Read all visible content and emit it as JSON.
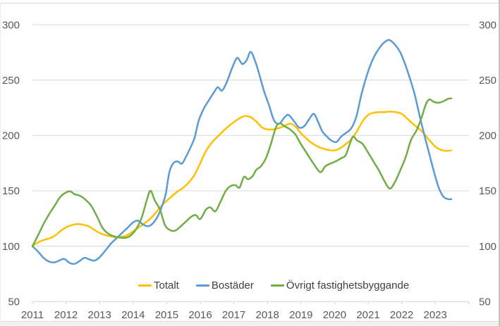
{
  "chart_data": {
    "type": "line",
    "title": "",
    "xlabel": "",
    "ylabel": "",
    "xlim": [
      2011,
      2024
    ],
    "ylim": [
      50,
      300
    ],
    "grid": "horizontal",
    "legend_position": "bottom-center",
    "y_ticks": [
      50,
      100,
      150,
      200,
      250,
      300
    ],
    "x_tick_labels": [
      "2011",
      "2012",
      "2013",
      "2014",
      "2015",
      "2016",
      "2017",
      "2018",
      "2019",
      "2020",
      "2021",
      "2022",
      "2023"
    ],
    "axis_label_color": "#595959",
    "gridline_color": "#d9d9d9",
    "series": [
      {
        "name": "Totalt",
        "color": "#FFC000",
        "points": [
          [
            2011.0,
            100
          ],
          [
            2011.17,
            103.5
          ],
          [
            2011.33,
            105.5
          ],
          [
            2011.5,
            107
          ],
          [
            2011.67,
            109.5
          ],
          [
            2011.83,
            113.5
          ],
          [
            2012.0,
            117
          ],
          [
            2012.17,
            119
          ],
          [
            2012.33,
            120
          ],
          [
            2012.5,
            119.5
          ],
          [
            2012.67,
            118
          ],
          [
            2012.83,
            115
          ],
          [
            2013.0,
            112
          ],
          [
            2013.17,
            110
          ],
          [
            2013.33,
            109
          ],
          [
            2013.5,
            108
          ],
          [
            2013.67,
            108.5
          ],
          [
            2013.83,
            110
          ],
          [
            2014.0,
            113.5
          ],
          [
            2014.17,
            117
          ],
          [
            2014.33,
            120.5
          ],
          [
            2014.5,
            124.5
          ],
          [
            2014.67,
            130
          ],
          [
            2014.83,
            136
          ],
          [
            2015.0,
            141
          ],
          [
            2015.17,
            145.5
          ],
          [
            2015.33,
            149.5
          ],
          [
            2015.5,
            153
          ],
          [
            2015.67,
            158
          ],
          [
            2015.83,
            164.5
          ],
          [
            2016.0,
            175
          ],
          [
            2016.17,
            186
          ],
          [
            2016.33,
            193
          ],
          [
            2016.5,
            198.5
          ],
          [
            2016.67,
            203.5
          ],
          [
            2016.83,
            208
          ],
          [
            2017.0,
            212
          ],
          [
            2017.17,
            215.5
          ],
          [
            2017.33,
            217.5
          ],
          [
            2017.5,
            216.5
          ],
          [
            2017.67,
            212.5
          ],
          [
            2017.83,
            207.5
          ],
          [
            2018.0,
            205.5
          ],
          [
            2018.17,
            205.5
          ],
          [
            2018.33,
            206.5
          ],
          [
            2018.5,
            208.5
          ],
          [
            2018.67,
            210.5
          ],
          [
            2018.83,
            208
          ],
          [
            2019.0,
            202
          ],
          [
            2019.17,
            197
          ],
          [
            2019.33,
            193
          ],
          [
            2019.5,
            190
          ],
          [
            2019.67,
            188
          ],
          [
            2019.83,
            186.8
          ],
          [
            2020.0,
            186.5
          ],
          [
            2020.17,
            188.5
          ],
          [
            2020.33,
            192
          ],
          [
            2020.5,
            196.5
          ],
          [
            2020.67,
            204
          ],
          [
            2020.83,
            212.5
          ],
          [
            2021.0,
            218.5
          ],
          [
            2021.17,
            220.5
          ],
          [
            2021.33,
            221
          ],
          [
            2021.5,
            221
          ],
          [
            2021.67,
            221.5
          ],
          [
            2021.83,
            221
          ],
          [
            2022.0,
            219.5
          ],
          [
            2022.17,
            215
          ],
          [
            2022.33,
            210.5
          ],
          [
            2022.5,
            206.5
          ],
          [
            2022.67,
            201.5
          ],
          [
            2022.83,
            195.5
          ],
          [
            2023.0,
            190
          ],
          [
            2023.17,
            187
          ],
          [
            2023.33,
            186
          ],
          [
            2023.48,
            186.5
          ]
        ]
      },
      {
        "name": "Bostäder",
        "color": "#5B9BD5",
        "points": [
          [
            2011.0,
            100
          ],
          [
            2011.17,
            95
          ],
          [
            2011.33,
            89.5
          ],
          [
            2011.5,
            86
          ],
          [
            2011.67,
            85.5
          ],
          [
            2011.83,
            87.5
          ],
          [
            2011.95,
            88.5
          ],
          [
            2012.1,
            85
          ],
          [
            2012.25,
            84
          ],
          [
            2012.4,
            86.5
          ],
          [
            2012.55,
            89.5
          ],
          [
            2012.7,
            88
          ],
          [
            2012.85,
            87
          ],
          [
            2013.0,
            90
          ],
          [
            2013.17,
            96
          ],
          [
            2013.33,
            102
          ],
          [
            2013.5,
            107
          ],
          [
            2013.67,
            112
          ],
          [
            2013.83,
            116.5
          ],
          [
            2014.0,
            121.5
          ],
          [
            2014.15,
            123
          ],
          [
            2014.3,
            119.5
          ],
          [
            2014.45,
            118
          ],
          [
            2014.6,
            121
          ],
          [
            2014.75,
            128
          ],
          [
            2014.87,
            137
          ],
          [
            2014.97,
            147
          ],
          [
            2015.08,
            167
          ],
          [
            2015.2,
            175
          ],
          [
            2015.33,
            176.5
          ],
          [
            2015.45,
            174.5
          ],
          [
            2015.58,
            181
          ],
          [
            2015.7,
            188.5
          ],
          [
            2015.83,
            198
          ],
          [
            2015.95,
            213
          ],
          [
            2016.1,
            224
          ],
          [
            2016.25,
            231.5
          ],
          [
            2016.4,
            238.5
          ],
          [
            2016.52,
            243.5
          ],
          [
            2016.65,
            240.5
          ],
          [
            2016.8,
            249
          ],
          [
            2016.95,
            261
          ],
          [
            2017.1,
            270
          ],
          [
            2017.25,
            264.5
          ],
          [
            2017.38,
            268
          ],
          [
            2017.5,
            275.5
          ],
          [
            2017.63,
            267.5
          ],
          [
            2017.75,
            256
          ],
          [
            2017.9,
            240
          ],
          [
            2018.05,
            227
          ],
          [
            2018.2,
            213.5
          ],
          [
            2018.35,
            210.5
          ],
          [
            2018.5,
            216
          ],
          [
            2018.63,
            218.5
          ],
          [
            2018.8,
            212.5
          ],
          [
            2018.95,
            207
          ],
          [
            2019.1,
            208.5
          ],
          [
            2019.25,
            215
          ],
          [
            2019.38,
            219.5
          ],
          [
            2019.5,
            213
          ],
          [
            2019.63,
            204
          ],
          [
            2019.77,
            199
          ],
          [
            2019.9,
            195.5
          ],
          [
            2020.05,
            194
          ],
          [
            2020.2,
            199
          ],
          [
            2020.35,
            202.5
          ],
          [
            2020.5,
            206.5
          ],
          [
            2020.65,
            217
          ],
          [
            2020.8,
            237
          ],
          [
            2020.95,
            253
          ],
          [
            2021.1,
            266
          ],
          [
            2021.25,
            275
          ],
          [
            2021.4,
            281.5
          ],
          [
            2021.55,
            285.5
          ],
          [
            2021.65,
            286
          ],
          [
            2021.8,
            282
          ],
          [
            2021.95,
            275.5
          ],
          [
            2022.1,
            264.5
          ],
          [
            2022.25,
            251
          ],
          [
            2022.4,
            235.5
          ],
          [
            2022.55,
            215.5
          ],
          [
            2022.7,
            197.5
          ],
          [
            2022.85,
            180
          ],
          [
            2023.0,
            163
          ],
          [
            2023.12,
            151.5
          ],
          [
            2023.25,
            144.5
          ],
          [
            2023.38,
            142.5
          ],
          [
            2023.48,
            142.5
          ]
        ]
      },
      {
        "name": "Övrigt fastighetsbyggande",
        "color": "#70AD47",
        "points": [
          [
            2011.0,
            100
          ],
          [
            2011.17,
            110
          ],
          [
            2011.33,
            120
          ],
          [
            2011.5,
            129
          ],
          [
            2011.67,
            137
          ],
          [
            2011.83,
            144.5
          ],
          [
            2012.0,
            148.5
          ],
          [
            2012.13,
            149.5
          ],
          [
            2012.25,
            147
          ],
          [
            2012.42,
            145.5
          ],
          [
            2012.58,
            142
          ],
          [
            2012.75,
            136.5
          ],
          [
            2012.92,
            127
          ],
          [
            2013.08,
            117
          ],
          [
            2013.25,
            111.5
          ],
          [
            2013.42,
            109
          ],
          [
            2013.58,
            108
          ],
          [
            2013.75,
            107.5
          ],
          [
            2013.92,
            109.5
          ],
          [
            2014.08,
            115
          ],
          [
            2014.25,
            125.5
          ],
          [
            2014.42,
            143
          ],
          [
            2014.52,
            150
          ],
          [
            2014.65,
            141
          ],
          [
            2014.8,
            133
          ],
          [
            2014.95,
            119
          ],
          [
            2015.1,
            114.5
          ],
          [
            2015.25,
            114
          ],
          [
            2015.42,
            118
          ],
          [
            2015.58,
            122.5
          ],
          [
            2015.75,
            127
          ],
          [
            2015.87,
            128
          ],
          [
            2016.0,
            124.5
          ],
          [
            2016.17,
            133
          ],
          [
            2016.3,
            135
          ],
          [
            2016.45,
            131.5
          ],
          [
            2016.6,
            140
          ],
          [
            2016.77,
            150.5
          ],
          [
            2016.92,
            154.5
          ],
          [
            2017.05,
            155
          ],
          [
            2017.17,
            153
          ],
          [
            2017.3,
            162.5
          ],
          [
            2017.42,
            160.5
          ],
          [
            2017.55,
            163
          ],
          [
            2017.67,
            169
          ],
          [
            2017.8,
            172
          ],
          [
            2017.95,
            179
          ],
          [
            2018.1,
            192
          ],
          [
            2018.25,
            207
          ],
          [
            2018.37,
            211
          ],
          [
            2018.5,
            208.5
          ],
          [
            2018.67,
            205.5
          ],
          [
            2018.83,
            201
          ],
          [
            2019.0,
            192
          ],
          [
            2019.17,
            184
          ],
          [
            2019.33,
            176.5
          ],
          [
            2019.5,
            169
          ],
          [
            2019.6,
            167
          ],
          [
            2019.72,
            172
          ],
          [
            2019.87,
            174.5
          ],
          [
            2020.03,
            176.5
          ],
          [
            2020.2,
            179.5
          ],
          [
            2020.33,
            182
          ],
          [
            2020.45,
            192
          ],
          [
            2020.55,
            199
          ],
          [
            2020.67,
            195.5
          ],
          [
            2020.83,
            192.5
          ],
          [
            2021.0,
            184.5
          ],
          [
            2021.17,
            176
          ],
          [
            2021.33,
            168
          ],
          [
            2021.5,
            158
          ],
          [
            2021.65,
            152
          ],
          [
            2021.8,
            158
          ],
          [
            2021.95,
            168
          ],
          [
            2022.12,
            180.5
          ],
          [
            2022.28,
            196
          ],
          [
            2022.45,
            205
          ],
          [
            2022.6,
            217
          ],
          [
            2022.72,
            228
          ],
          [
            2022.82,
            232.5
          ],
          [
            2022.95,
            230.5
          ],
          [
            2023.1,
            229.5
          ],
          [
            2023.25,
            231
          ],
          [
            2023.38,
            233
          ],
          [
            2023.48,
            233.5
          ]
        ]
      }
    ]
  }
}
